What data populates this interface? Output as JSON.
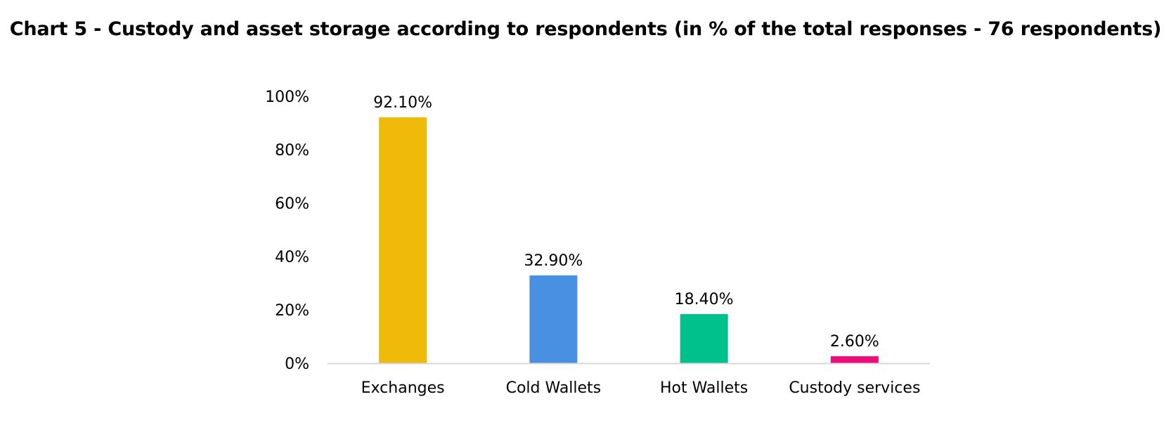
{
  "chart_data": {
    "type": "bar",
    "title": "Chart 5 - Custody and asset storage according to respondents (in % of the total responses - 76 respondents)",
    "categories": [
      "Exchanges",
      "Cold Wallets",
      "Hot Wallets",
      "Custody services"
    ],
    "values": [
      92.1,
      32.9,
      18.4,
      2.6
    ],
    "data_labels": [
      "92.10%",
      "32.90%",
      "18.40%",
      "2.60%"
    ],
    "colors": [
      "#F0BA0A",
      "#4A90E2",
      "#00C08B",
      "#EE0A78"
    ],
    "y_ticks": [
      0,
      20,
      40,
      60,
      80,
      100
    ],
    "y_tick_labels": [
      "0%",
      "20%",
      "40%",
      "60%",
      "80%",
      "100%"
    ],
    "ylim": [
      0,
      100
    ],
    "xlabel": "",
    "ylabel": "",
    "grid": false,
    "legend": "none",
    "axis_color": "#D9D9D9"
  }
}
